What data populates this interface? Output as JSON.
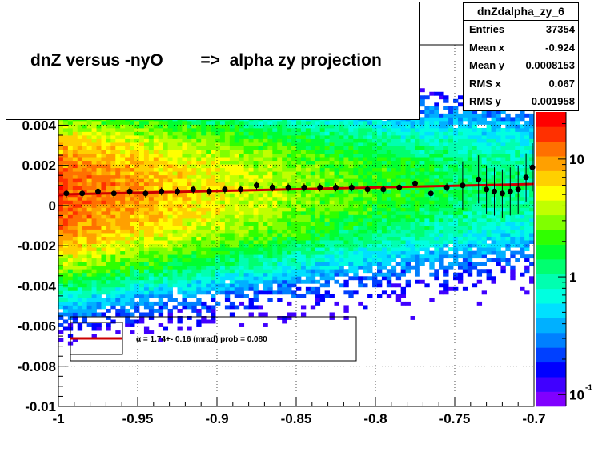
{
  "title": "dnZ versus -nyO        =>  alpha zy projection",
  "stats": {
    "name": "dnZdalpha_zy_6",
    "rows": [
      {
        "label": "Entries",
        "value": "37354"
      },
      {
        "label": "Mean x",
        "value": "-0.924"
      },
      {
        "label": "Mean y",
        "value": "0.0008153"
      },
      {
        "label": "RMS x",
        "value": "0.067"
      },
      {
        "label": "RMS y",
        "value": "0.001958"
      }
    ]
  },
  "fit_legend": {
    "text": "α =    1.74+- 0.16 (mrad) prob = 0.080",
    "color": "#cc0000"
  },
  "chart_data": {
    "type": "heatmap",
    "xlim": [
      -1.0,
      -0.7
    ],
    "ylim": [
      -0.01,
      0.008
    ],
    "x_ticks": [
      "-1",
      "-0.95",
      "-0.9",
      "-0.85",
      "-0.8",
      "-0.75",
      "-0.7"
    ],
    "x_tick_values": [
      -1.0,
      -0.95,
      -0.9,
      -0.85,
      -0.8,
      -0.75,
      -0.7
    ],
    "y_ticks": [
      "-0.01",
      "-0.008",
      "-0.006",
      "-0.004",
      "-0.002",
      "0",
      "0.002",
      "0.004"
    ],
    "y_tick_values": [
      -0.01,
      -0.008,
      -0.006,
      -0.004,
      -0.002,
      0,
      0.002,
      0.004
    ],
    "z_scale": "log",
    "z_ticks": [
      "10",
      "1",
      "10"
    ],
    "z_tick_values": [
      10,
      1,
      0.1
    ],
    "z_tick_exponent": "-1",
    "grid": true,
    "profile_points": [
      {
        "x": -0.995,
        "y": 0.0006
      },
      {
        "x": -0.985,
        "y": 0.0006
      },
      {
        "x": -0.975,
        "y": 0.0007
      },
      {
        "x": -0.965,
        "y": 0.0006
      },
      {
        "x": -0.955,
        "y": 0.0007
      },
      {
        "x": -0.945,
        "y": 0.0006
      },
      {
        "x": -0.935,
        "y": 0.0007
      },
      {
        "x": -0.925,
        "y": 0.0007
      },
      {
        "x": -0.915,
        "y": 0.0008
      },
      {
        "x": -0.905,
        "y": 0.0007
      },
      {
        "x": -0.895,
        "y": 0.0008
      },
      {
        "x": -0.885,
        "y": 0.0008
      },
      {
        "x": -0.875,
        "y": 0.001
      },
      {
        "x": -0.865,
        "y": 0.0009
      },
      {
        "x": -0.855,
        "y": 0.0009
      },
      {
        "x": -0.845,
        "y": 0.0009
      },
      {
        "x": -0.835,
        "y": 0.0009
      },
      {
        "x": -0.825,
        "y": 0.0009
      },
      {
        "x": -0.815,
        "y": 0.0009
      },
      {
        "x": -0.805,
        "y": 0.0008
      },
      {
        "x": -0.795,
        "y": 0.0008
      },
      {
        "x": -0.785,
        "y": 0.0009
      },
      {
        "x": -0.775,
        "y": 0.0011
      },
      {
        "x": -0.765,
        "y": 0.0006
      },
      {
        "x": -0.755,
        "y": 0.0009
      },
      {
        "x": -0.745,
        "y": 0.001
      },
      {
        "x": -0.735,
        "y": 0.0013
      },
      {
        "x": -0.73,
        "y": 0.0008
      },
      {
        "x": -0.725,
        "y": 0.0007
      },
      {
        "x": -0.72,
        "y": 0.0006
      },
      {
        "x": -0.715,
        "y": 0.0007
      },
      {
        "x": -0.71,
        "y": 0.0008
      },
      {
        "x": -0.705,
        "y": 0.0014
      },
      {
        "x": -0.701,
        "y": 0.0019
      }
    ],
    "fit_line": {
      "x": [
        -1.0,
        -0.7
      ],
      "y": [
        0.00055,
        0.00107
      ]
    }
  }
}
